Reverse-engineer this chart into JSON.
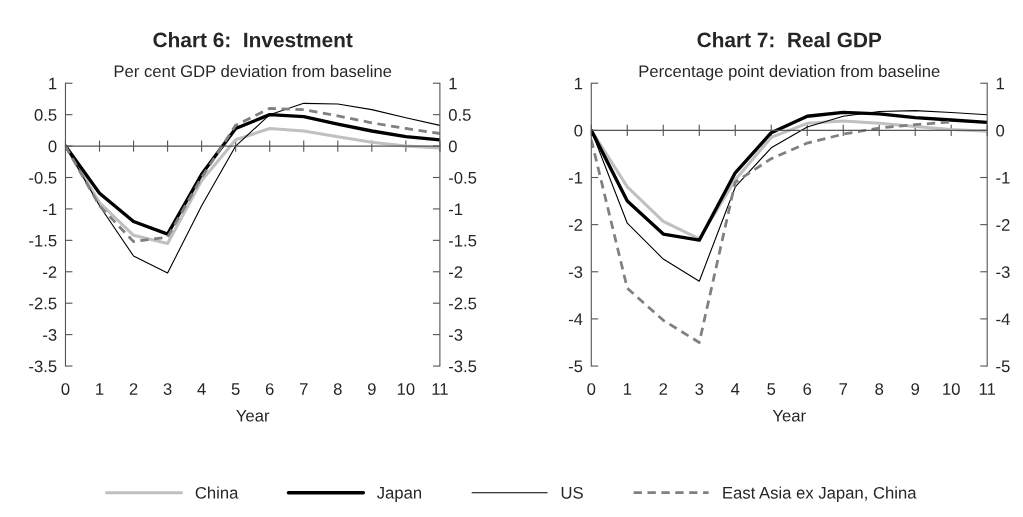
{
  "chart_data": [
    {
      "type": "line",
      "title": "Chart 6:  Investment",
      "subtitle": "Per cent GDP deviation from baseline",
      "xlabel": "Year",
      "x": [
        0,
        1,
        2,
        3,
        4,
        5,
        6,
        7,
        8,
        9,
        10,
        11
      ],
      "xlim": [
        0,
        11
      ],
      "xticks": [
        0,
        1,
        2,
        3,
        4,
        5,
        6,
        7,
        8,
        9,
        10,
        11
      ],
      "ylim": [
        -3.5,
        1
      ],
      "yticks": [
        -3.5,
        -3,
        -2.5,
        -2,
        -1.5,
        -1,
        -0.5,
        0,
        0.5,
        1
      ],
      "y2lim": [
        -3.5,
        1
      ],
      "y2ticks": [
        -3.5,
        -3,
        -2.5,
        -2,
        -1.5,
        -1,
        -0.5,
        0,
        0.5,
        1
      ],
      "legend": "bottom",
      "marker": "none",
      "series": [
        {
          "name": "China",
          "color": "#c0c0c0",
          "line_style": "solid",
          "values": [
            0,
            -0.9,
            -1.42,
            -1.55,
            -0.55,
            0.1,
            0.28,
            0.24,
            0.15,
            0.06,
            0.0,
            -0.03
          ]
        },
        {
          "name": "Japan",
          "color": "#000000",
          "line_style": "solid",
          "values": [
            0,
            -0.75,
            -1.2,
            -1.4,
            -0.45,
            0.28,
            0.5,
            0.47,
            0.35,
            0.24,
            0.15,
            0.1
          ]
        },
        {
          "name": "US",
          "color": "#000000",
          "line_style": "solid",
          "values": [
            0,
            -0.95,
            -1.75,
            -2.02,
            -0.95,
            0.0,
            0.5,
            0.68,
            0.67,
            0.58,
            0.45,
            0.33
          ]
        },
        {
          "name": "East Asia ex Japan, China",
          "color": "#808080",
          "line_style": "dashed",
          "values": [
            0,
            -0.95,
            -1.52,
            -1.45,
            -0.5,
            0.33,
            0.6,
            0.58,
            0.48,
            0.37,
            0.28,
            0.2
          ]
        }
      ]
    },
    {
      "type": "line",
      "title": "Chart 7:  Real GDP",
      "subtitle": "Percentage point deviation from baseline",
      "xlabel": "Year",
      "x": [
        0,
        1,
        2,
        3,
        4,
        5,
        6,
        7,
        8,
        9,
        10,
        11
      ],
      "xlim": [
        0,
        11
      ],
      "xticks": [
        0,
        1,
        2,
        3,
        4,
        5,
        6,
        7,
        8,
        9,
        10,
        11
      ],
      "ylim": [
        -5,
        1
      ],
      "yticks": [
        -5,
        -4,
        -3,
        -2,
        -1,
        0,
        1
      ],
      "y2lim": [
        -5,
        1
      ],
      "y2ticks": [
        -5,
        -4,
        -3,
        -2,
        -1,
        0,
        1
      ],
      "marker": "none",
      "series": [
        {
          "color": "#c0c0c0",
          "line_style": "solid",
          "values": [
            0,
            -1.2,
            -1.93,
            -2.3,
            -1.05,
            -0.15,
            0.15,
            0.2,
            0.15,
            0.08,
            0.02,
            -0.02
          ]
        },
        {
          "color": "#000000",
          "line_style": "solid",
          "values": [
            0,
            -1.5,
            -2.2,
            -2.33,
            -0.9,
            -0.05,
            0.3,
            0.38,
            0.35,
            0.27,
            0.22,
            0.17
          ]
        },
        {
          "color": "#000000",
          "line_style": "solid",
          "values": [
            0,
            -1.97,
            -2.73,
            -3.2,
            -1.2,
            -0.37,
            0.07,
            0.3,
            0.4,
            0.42,
            0.38,
            0.33
          ]
        },
        {
          "color": "#808080",
          "line_style": "dashed",
          "values": [
            -0.2,
            -3.35,
            -4.03,
            -4.5,
            -1.1,
            -0.6,
            -0.27,
            -0.08,
            0.05,
            0.12,
            0.18,
            null
          ]
        }
      ]
    }
  ]
}
